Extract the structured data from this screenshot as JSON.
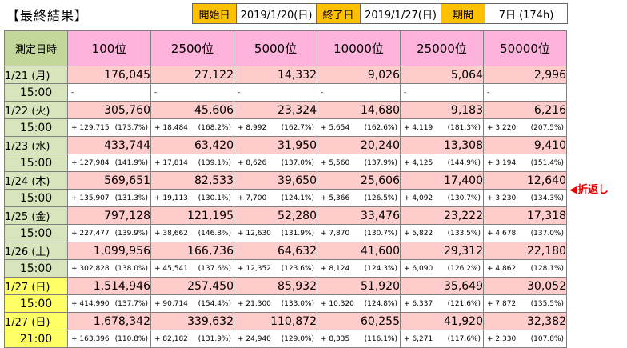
{
  "title": "【最終結果】",
  "header": {
    "start_label": "開始日",
    "start_value": "2019/1/20(日)",
    "end_label": "終了日",
    "end_value": "2019/1/27(日)",
    "period_label": "期間",
    "period_value": "7日 (174h)"
  },
  "columns": [
    "測定日時",
    "100位",
    "2500位",
    "5000位",
    "10000位",
    "25000位",
    "50000位"
  ],
  "rows": [
    {
      "date": "1/21 (月)",
      "time": "15:00",
      "highlight": false,
      "values": [
        "176,045",
        "27,122",
        "14,332",
        "9,026",
        "5,064",
        "2,996"
      ],
      "diffs": [
        [
          "-",
          ""
        ],
        [
          "-",
          ""
        ],
        [
          "-",
          ""
        ],
        [
          "-",
          ""
        ],
        [
          "-",
          ""
        ],
        [
          "-",
          ""
        ]
      ]
    },
    {
      "date": "1/22 (火)",
      "time": "15:00",
      "highlight": false,
      "values": [
        "305,760",
        "45,606",
        "23,324",
        "14,680",
        "9,183",
        "6,216"
      ],
      "diffs": [
        [
          "+ 129,715",
          "(173.7%)"
        ],
        [
          "+ 18,484",
          "(168.2%)"
        ],
        [
          "+ 8,992",
          "(162.7%)"
        ],
        [
          "+ 5,654",
          "(162.6%)"
        ],
        [
          "+ 4,119",
          "(181.3%)"
        ],
        [
          "+ 3,220",
          "(207.5%)"
        ]
      ]
    },
    {
      "date": "1/23 (水)",
      "time": "15:00",
      "highlight": false,
      "values": [
        "433,744",
        "63,420",
        "31,950",
        "20,240",
        "13,308",
        "9,410"
      ],
      "diffs": [
        [
          "+ 127,984",
          "(141.9%)"
        ],
        [
          "+ 17,814",
          "(139.1%)"
        ],
        [
          "+ 8,626",
          "(137.0%)"
        ],
        [
          "+ 5,560",
          "(137.9%)"
        ],
        [
          "+ 4,125",
          "(144.9%)"
        ],
        [
          "+ 3,194",
          "(151.4%)"
        ]
      ]
    },
    {
      "date": "1/24 (木)",
      "time": "15:00",
      "highlight": false,
      "values": [
        "569,651",
        "82,533",
        "39,650",
        "25,606",
        "17,400",
        "12,640"
      ],
      "diffs": [
        [
          "+ 135,907",
          "(131.3%)"
        ],
        [
          "+ 19,113",
          "(130.1%)"
        ],
        [
          "+ 7,700",
          "(124.1%)"
        ],
        [
          "+ 5,366",
          "(126.5%)"
        ],
        [
          "+ 4,092",
          "(130.7%)"
        ],
        [
          "+ 3,230",
          "(134.3%)"
        ]
      ]
    },
    {
      "date": "1/25 (金)",
      "time": "15:00",
      "highlight": false,
      "values": [
        "797,128",
        "121,195",
        "52,280",
        "33,476",
        "23,222",
        "17,318"
      ],
      "diffs": [
        [
          "+ 227,477",
          "(139.9%)"
        ],
        [
          "+ 38,662",
          "(146.8%)"
        ],
        [
          "+ 12,630",
          "(131.9%)"
        ],
        [
          "+ 7,870",
          "(130.7%)"
        ],
        [
          "+ 5,822",
          "(133.5%)"
        ],
        [
          "+ 4,678",
          "(137.0%)"
        ]
      ]
    },
    {
      "date": "1/26 (土)",
      "time": "15:00",
      "highlight": false,
      "values": [
        "1,099,956",
        "166,736",
        "64,632",
        "41,600",
        "29,312",
        "22,180"
      ],
      "diffs": [
        [
          "+ 302,828",
          "(138.0%)"
        ],
        [
          "+ 45,541",
          "(137.6%)"
        ],
        [
          "+ 12,352",
          "(123.6%)"
        ],
        [
          "+ 8,124",
          "(124.3%)"
        ],
        [
          "+ 6,090",
          "(126.2%)"
        ],
        [
          "+ 4,862",
          "(128.1%)"
        ]
      ]
    },
    {
      "date": "1/27 (日)",
      "time": "15:00",
      "highlight": true,
      "values": [
        "1,514,946",
        "257,450",
        "85,932",
        "51,920",
        "35,649",
        "30,052"
      ],
      "diffs": [
        [
          "+ 414,990",
          "(137.7%)"
        ],
        [
          "+ 90,714",
          "(154.4%)"
        ],
        [
          "+ 21,300",
          "(133.0%)"
        ],
        [
          "+ 10,320",
          "(124.8%)"
        ],
        [
          "+ 6,337",
          "(121.6%)"
        ],
        [
          "+ 7,872",
          "(135.5%)"
        ]
      ]
    },
    {
      "date": "1/27 (日)",
      "time": "21:00",
      "highlight": true,
      "values": [
        "1,678,342",
        "339,632",
        "110,872",
        "60,255",
        "41,920",
        "32,382"
      ],
      "diffs": [
        [
          "+ 163,396",
          "(110.8%)"
        ],
        [
          "+ 82,182",
          "(131.9%)"
        ],
        [
          "+ 24,940",
          "(129.0%)"
        ],
        [
          "+ 8,335",
          "(116.1%)"
        ],
        [
          "+ 6,271",
          "(117.6%)"
        ],
        [
          "+ 2,330",
          "(107.8%)"
        ]
      ]
    }
  ],
  "note": "◀折返し"
}
